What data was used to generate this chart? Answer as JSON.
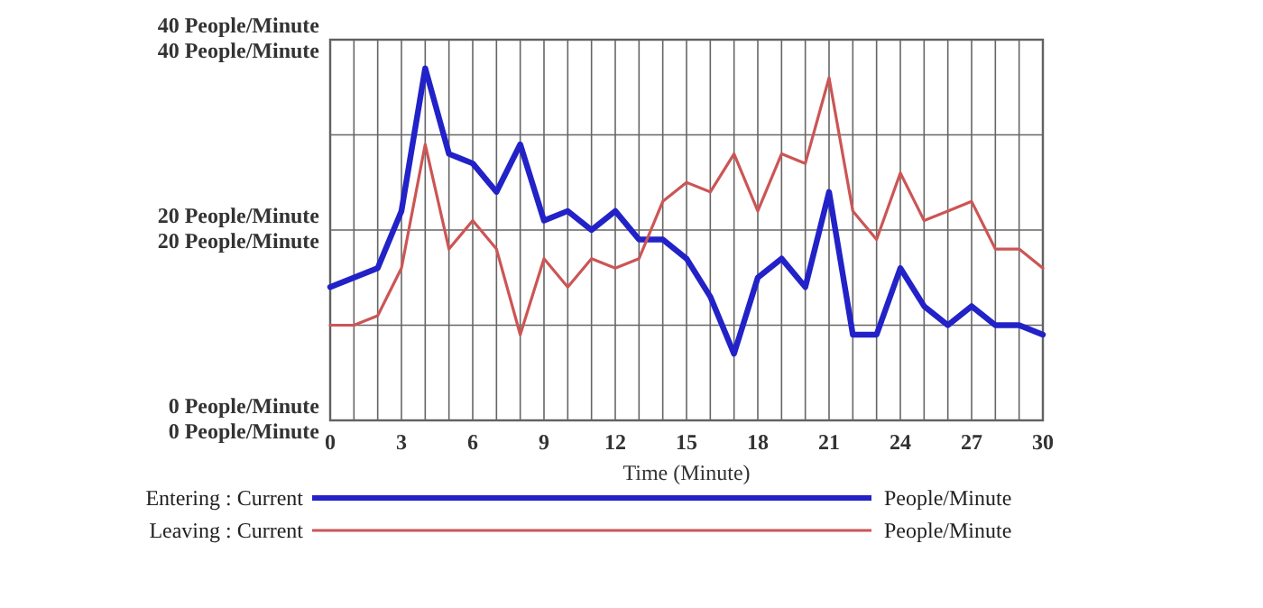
{
  "chart_data": {
    "type": "line",
    "xlabel": "Time (Minute)",
    "x": [
      0,
      1,
      2,
      3,
      4,
      5,
      6,
      7,
      8,
      9,
      10,
      11,
      12,
      13,
      14,
      15,
      16,
      17,
      18,
      19,
      20,
      21,
      22,
      23,
      24,
      25,
      26,
      27,
      28,
      29,
      30
    ],
    "series": [
      {
        "name": "Entering : Current",
        "color": "#2222c8",
        "values": [
          14,
          15,
          16,
          22,
          37,
          28,
          27,
          24,
          29,
          21,
          22,
          20,
          22,
          19,
          19,
          17,
          13,
          7,
          15,
          17,
          14,
          24,
          9,
          9,
          16,
          12,
          10,
          12,
          10,
          10,
          9
        ]
      },
      {
        "name": "Leaving : Current",
        "color": "#cc5555",
        "axis": "y2",
        "values": [
          10,
          10,
          11,
          16,
          29,
          18,
          21,
          18,
          9,
          17,
          14,
          17,
          16,
          17,
          23,
          25,
          24,
          28,
          22,
          28,
          27,
          36,
          22,
          19,
          26,
          21,
          22,
          23,
          18,
          18,
          16
        ]
      }
    ],
    "xlim": [
      0,
      30
    ],
    "xticks": [
      0,
      {
        "value": 1,
        "label": null
      },
      {
        "value": 2,
        "label": null
      },
      3,
      {
        "value": 4,
        "label": null
      },
      {
        "value": 5,
        "label": null
      },
      6,
      {
        "value": 7,
        "label": null
      },
      {
        "value": 8,
        "label": null
      },
      9,
      {
        "value": 10,
        "label": null
      },
      {
        "value": 11,
        "label": null
      },
      12,
      {
        "value": 13,
        "label": null
      },
      {
        "value": 14,
        "label": null
      },
      15,
      {
        "value": 16,
        "label": null
      },
      {
        "value": 17,
        "label": null
      },
      18,
      {
        "value": 19,
        "label": null
      },
      {
        "value": 20,
        "label": null
      },
      21,
      {
        "value": 22,
        "label": null
      },
      {
        "value": 23,
        "label": null
      },
      24,
      {
        "value": 25,
        "label": null
      },
      {
        "value": 26,
        "label": null
      },
      27,
      {
        "value": 28,
        "label": null
      },
      {
        "value": 29,
        "label": null
      },
      30
    ],
    "ylim": [
      0,
      40
    ],
    "yticks": [
      {
        "value": 0,
        "label": "0 People/Minute"
      },
      {
        "value": 10,
        "label": null
      },
      {
        "value": 20,
        "label": "20 People/Minute"
      },
      {
        "value": 30,
        "label": null
      },
      {
        "value": 40,
        "label": "40 People/Minute"
      }
    ],
    "y2lim": [
      0,
      40
    ],
    "y2ticks": [
      {
        "value": 0,
        "label": "0 People/Minute"
      },
      {
        "value": 20,
        "label": "20 People/Minute"
      },
      {
        "value": 40,
        "label": "40 People/Minute"
      }
    ],
    "grid": true,
    "legend": "bottom",
    "marker": "none",
    "line_style": "solid",
    "annotations": [
      "People/Minute",
      "People/Minute"
    ]
  }
}
